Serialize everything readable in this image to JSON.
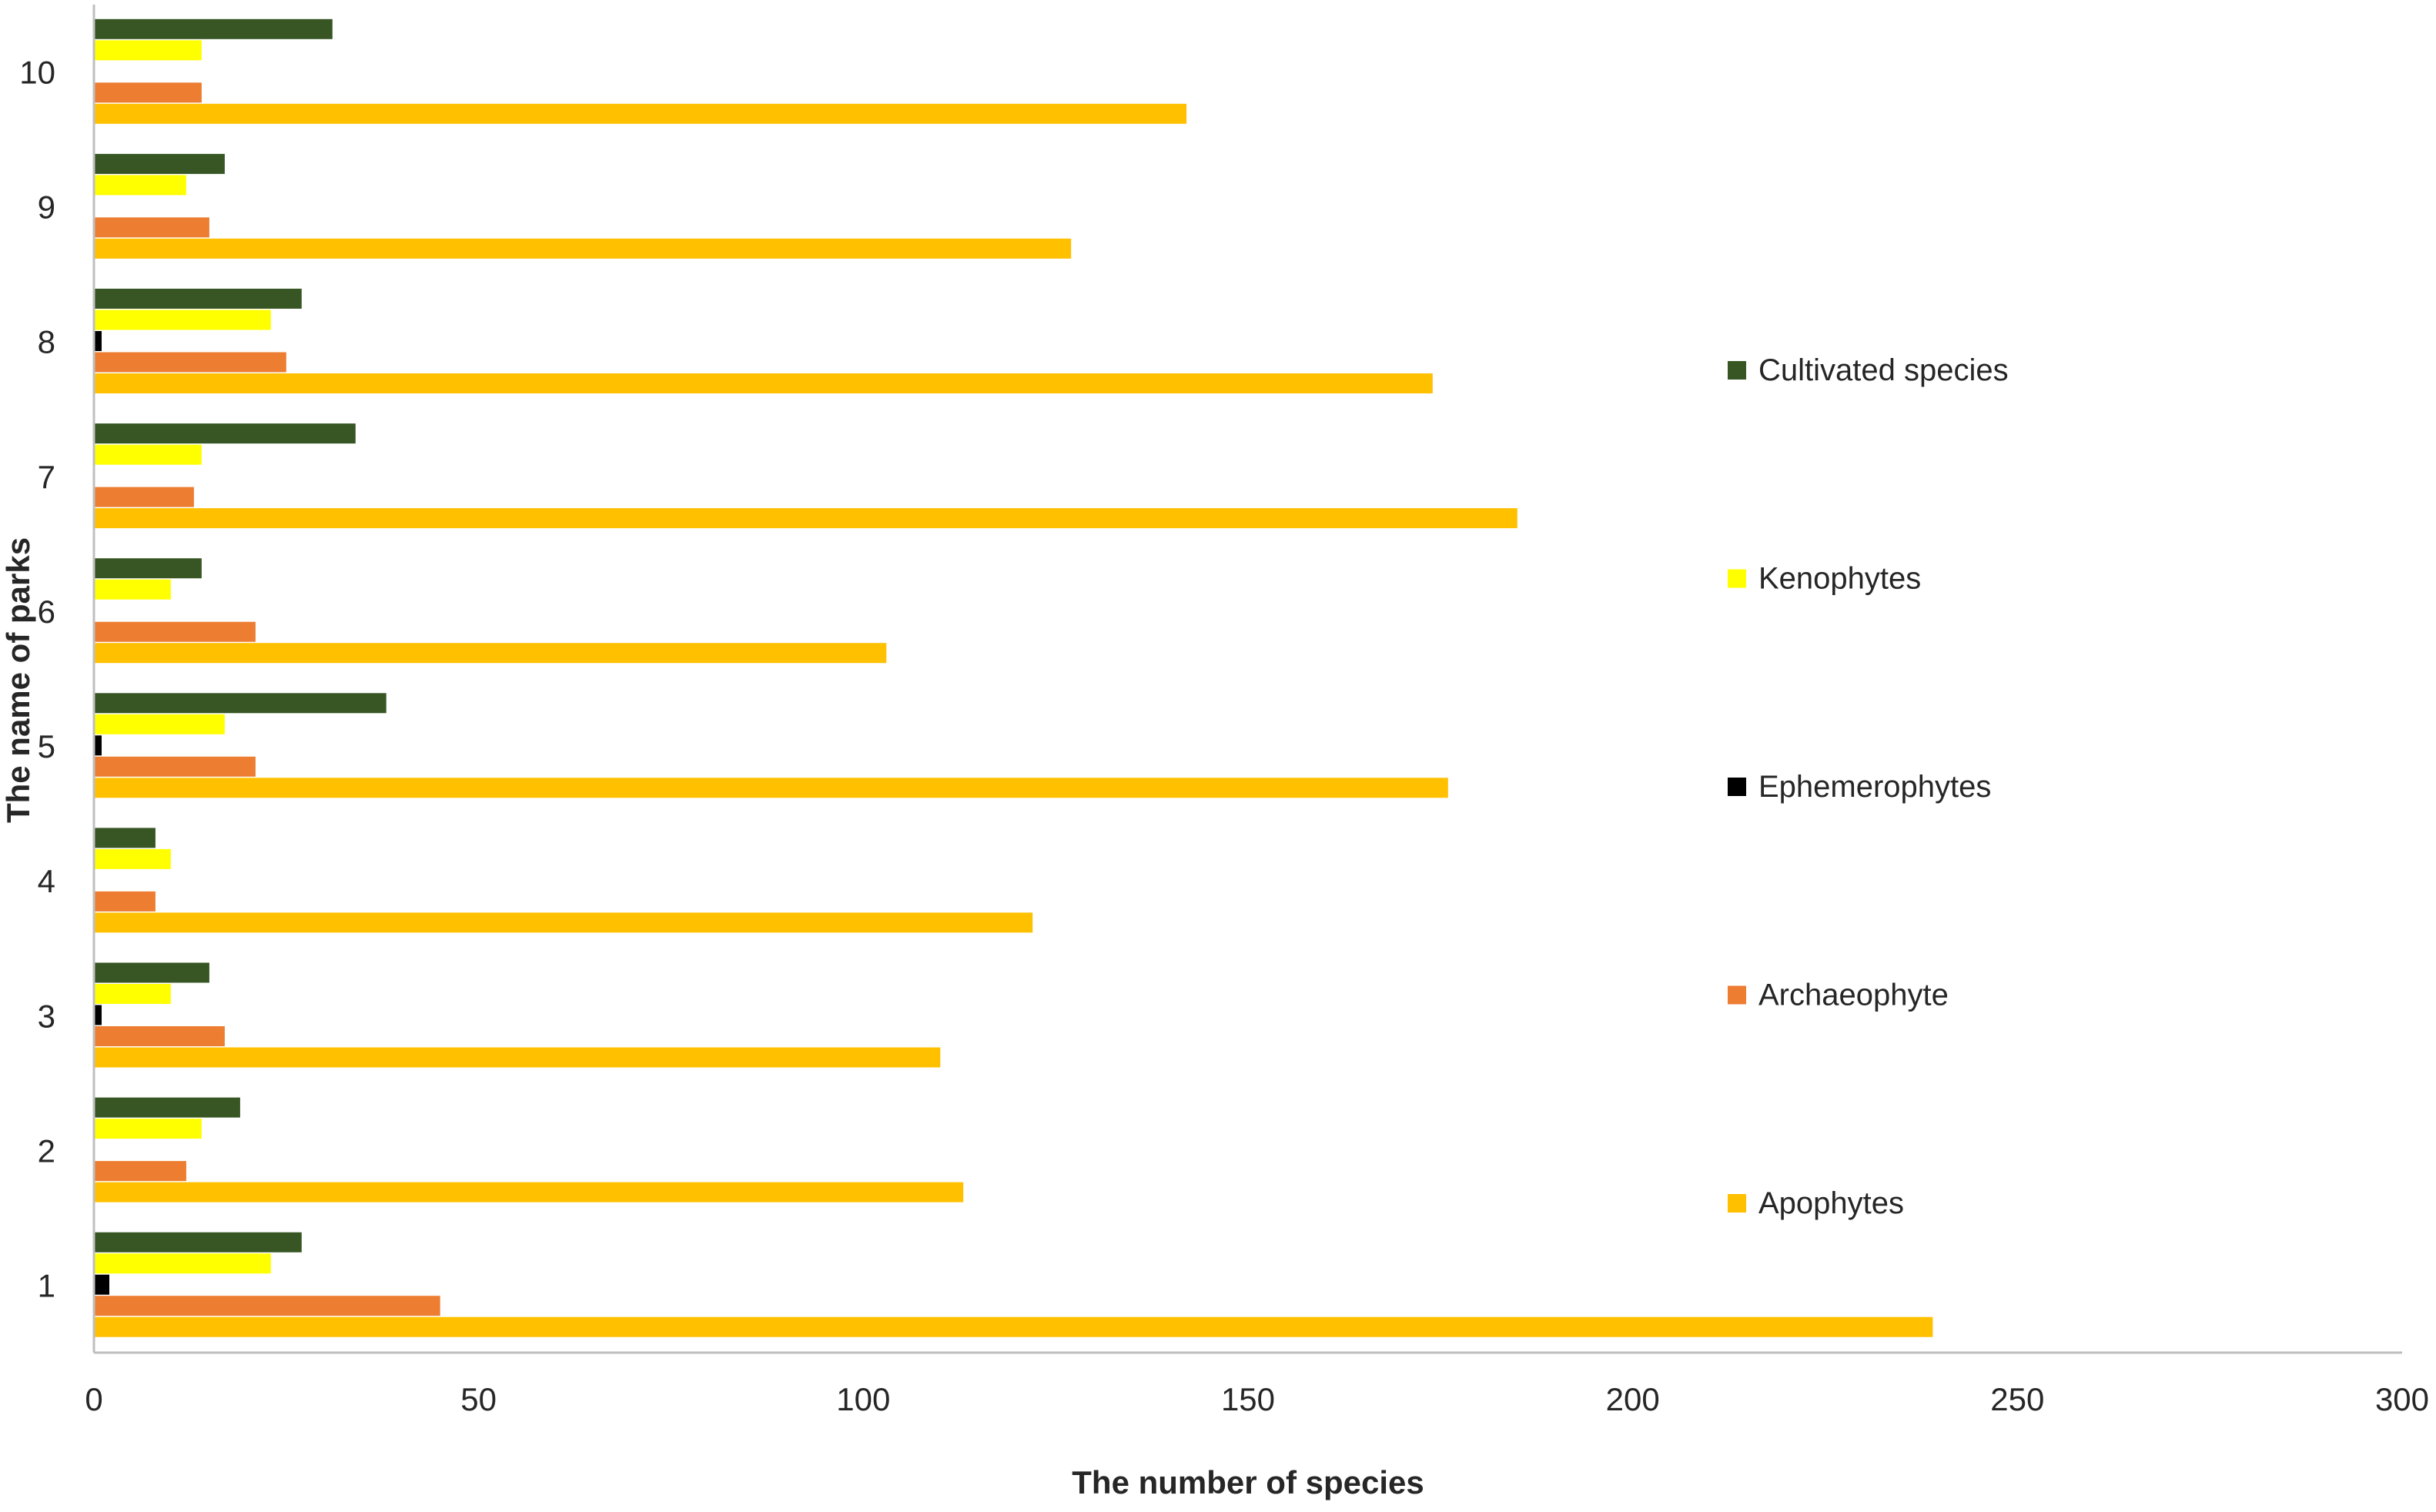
{
  "chart_data": {
    "type": "bar",
    "orientation": "horizontal",
    "categories": [
      "1",
      "2",
      "3",
      "4",
      "5",
      "6",
      "7",
      "8",
      "9",
      "10"
    ],
    "series": [
      {
        "name": "Apophytes",
        "color": "#FFC000",
        "values": [
          239,
          113,
          110,
          122,
          176,
          103,
          185,
          174,
          127,
          142
        ]
      },
      {
        "name": "Archaeophyte",
        "color": "#ED7D31",
        "values": [
          45,
          12,
          17,
          8,
          21,
          21,
          13,
          25,
          15,
          14
        ]
      },
      {
        "name": "Ephemerophytes",
        "color": "#000000",
        "values": [
          2,
          0,
          1,
          0,
          1,
          0,
          0,
          1,
          0,
          0
        ]
      },
      {
        "name": "Kenophytes",
        "color": "#FFFF00",
        "values": [
          23,
          14,
          10,
          10,
          17,
          10,
          14,
          23,
          12,
          14
        ]
      },
      {
        "name": "Cultivated species",
        "color": "#375623",
        "values": [
          27,
          19,
          15,
          8,
          38,
          14,
          34,
          27,
          17,
          31
        ]
      }
    ],
    "legend_order": [
      "Cultivated species",
      "Kenophytes",
      "Ephemerophytes",
      "Archaeophyte",
      "Apophytes"
    ],
    "xlabel": "The number of species",
    "ylabel": "The name of parks",
    "xlim": [
      0,
      300
    ],
    "xticks": [
      "0",
      "50",
      "100",
      "150",
      "200",
      "250",
      "300"
    ],
    "grid": false,
    "legend_position": "right"
  }
}
